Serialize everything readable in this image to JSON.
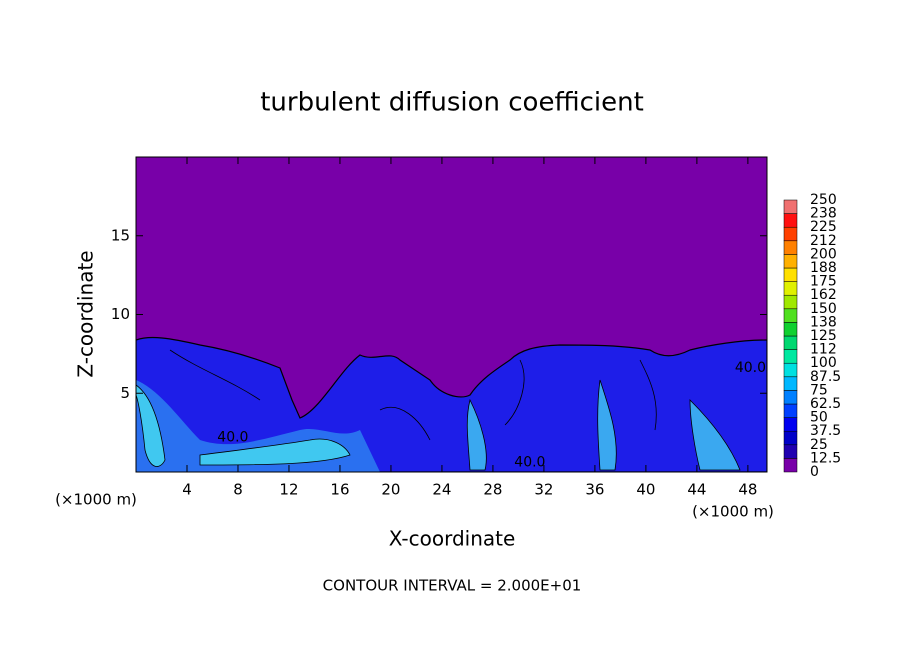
{
  "chart_data": {
    "type": "contour",
    "title": "turbulent diffusion coefficient",
    "xlabel": "X-coordinate",
    "ylabel": "Z-coordinate",
    "x_unit": "(×1000 m)",
    "annotation": "CONTOUR INTERVAL = 2.000E+01",
    "xlim": [
      0,
      49.5
    ],
    "xticks": [
      4,
      8,
      12,
      16,
      20,
      24,
      28,
      32,
      36,
      40,
      44,
      48
    ],
    "ylim": [
      0,
      20
    ],
    "yticks": [
      5,
      10,
      15
    ],
    "contour_labels": [
      {
        "value": 40,
        "label": "40.0",
        "x": 7.6,
        "z": 2.2
      },
      {
        "value": 40,
        "label": "40.0",
        "x": 30.9,
        "z": 0.6
      },
      {
        "value": 40,
        "label": "40.0",
        "x": 48.2,
        "z": 6.6
      }
    ],
    "colorbar": {
      "levels": [
        0,
        12.5,
        25,
        37.5,
        50,
        62.5,
        75,
        87.5,
        100,
        112,
        125,
        138,
        150,
        162,
        175,
        188,
        200,
        212,
        225,
        238,
        250
      ],
      "colors": [
        "#7800a8",
        "#2000b0",
        "#0000c8",
        "#0000f0",
        "#0040ff",
        "#0080ff",
        "#00b8ff",
        "#00e0e0",
        "#00e8a0",
        "#00d870",
        "#10d030",
        "#50e020",
        "#a0e800",
        "#e0f000",
        "#ffe000",
        "#ffb000",
        "#ff8000",
        "#ff4000",
        "#ff1010",
        "#f07070"
      ]
    }
  }
}
